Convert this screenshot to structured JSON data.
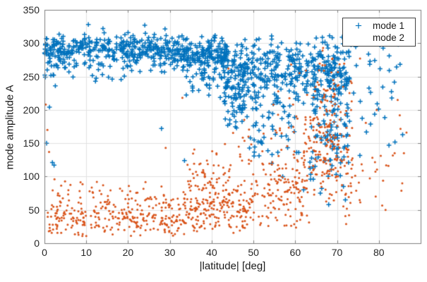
{
  "chart_data": {
    "type": "scatter",
    "title": "",
    "xlabel": "|latitude| [deg]",
    "ylabel": "mode amplitude A",
    "xlim": [
      0,
      90
    ],
    "ylim": [
      0,
      350
    ],
    "xticks": [
      0,
      10,
      20,
      30,
      40,
      50,
      60,
      70,
      80
    ],
    "yticks": [
      0,
      50,
      100,
      150,
      200,
      250,
      300,
      350
    ],
    "grid": true,
    "background_color": "#ffffff",
    "axis_box_color": "#7f7f7f",
    "grid_color": "#e2e2e2",
    "tick_text_color": "#262626",
    "label_text_color": "#1a1a1a",
    "seed": 1234,
    "legend": {
      "position": "northeast",
      "border_color": "#404040",
      "entries": [
        "mode 1",
        "mode 2"
      ]
    },
    "series": [
      {
        "name": "mode 1",
        "marker": "plus",
        "marker_glyph": "+",
        "color": "#0072BD",
        "marker_size": 6.6,
        "clusters": [
          {
            "n": 320,
            "x": [
              0,
              30
            ],
            "y": {
              "mean": 291,
              "sd": 11,
              "clip": [
                245,
                328
              ]
            }
          },
          {
            "n": 55,
            "x": [
              0,
              30
            ],
            "y": {
              "mean": 266,
              "sd": 10,
              "clip": [
                235,
                290
              ]
            }
          },
          {
            "n": 180,
            "x": [
              30,
              44
            ],
            "y": {
              "mean": 285,
              "sd": 13,
              "clip": [
                240,
                325
              ]
            }
          },
          {
            "n": 90,
            "x": [
              33,
              47
            ],
            "y": {
              "mean": 255,
              "sd": 20,
              "clip": [
                195,
                300
              ]
            }
          },
          {
            "n": 90,
            "x": [
              43,
              48
            ],
            "y": {
              "mean": 232,
              "sd": 33,
              "clip": [
                165,
                305
              ]
            }
          },
          {
            "n": 110,
            "x": [
              47,
              56
            ],
            "y": {
              "mean": 262,
              "sd": 26,
              "clip": [
                175,
                315
              ]
            }
          },
          {
            "n": 55,
            "x": [
              48,
              61
            ],
            "y": {
              "mean": 180,
              "sd": 30,
              "clip": [
                110,
                240
              ]
            }
          },
          {
            "n": 60,
            "x": [
              55,
              61
            ],
            "y": {
              "mean": 258,
              "sd": 26,
              "clip": [
                180,
                312
              ]
            }
          },
          {
            "n": 150,
            "x": [
              60,
              73
            ],
            "y": {
              "mean": 262,
              "sd": 24,
              "clip": [
                198,
                315
              ]
            }
          },
          {
            "n": 140,
            "x": [
              63,
              73
            ],
            "y": {
              "mean": 190,
              "sd": 55,
              "clip": [
                75,
                300
              ]
            }
          },
          {
            "n": 35,
            "x": [
              73,
              86
            ],
            "y": {
              "mean": 235,
              "sd": 50,
              "clip": [
                105,
                308
              ]
            }
          }
        ],
        "points": [
          [
            0.5,
            150
          ],
          [
            1.2,
            204
          ],
          [
            1.9,
            121
          ],
          [
            2.3,
            117
          ],
          [
            2.6,
            236
          ],
          [
            10.5,
            328
          ],
          [
            14,
            322
          ],
          [
            20,
            316
          ],
          [
            24,
            327
          ],
          [
            28,
            172
          ],
          [
            33.5,
            124
          ],
          [
            57,
            100
          ],
          [
            62,
            80
          ],
          [
            66,
            75
          ],
          [
            68,
            58
          ],
          [
            72,
            65
          ]
        ]
      },
      {
        "name": "mode 2",
        "marker": "dot",
        "marker_glyph": "•",
        "color": "#D95319",
        "marker_size": 3,
        "clusters": [
          {
            "n": 270,
            "x": [
              0,
              32
            ],
            "y": {
              "mean": 38,
              "sd": 16,
              "clip": [
                10,
                95
              ]
            }
          },
          {
            "n": 40,
            "x": [
              3,
              30
            ],
            "y": {
              "mean": 76,
              "sd": 10,
              "clip": [
                58,
                97
              ]
            }
          },
          {
            "n": 200,
            "x": [
              32,
              50
            ],
            "y": {
              "mean": 52,
              "sd": 20,
              "clip": [
                12,
                110
              ]
            }
          },
          {
            "n": 70,
            "x": [
              34,
              46
            ],
            "y": {
              "mean": 95,
              "sd": 25,
              "clip": [
                60,
                155
              ]
            }
          },
          {
            "n": 110,
            "x": [
              50,
              62
            ],
            "y": {
              "mean": 70,
              "sd": 30,
              "clip": [
                15,
                160
              ]
            }
          },
          {
            "n": 20,
            "x": [
              44,
              56
            ],
            "y": {
              "mean": 140,
              "sd": 35,
              "clip": [
                90,
                240
              ]
            }
          },
          {
            "n": 55,
            "x": [
              55,
              66
            ],
            "y": {
              "mean": 130,
              "sd": 40,
              "clip": [
                60,
                250
              ]
            }
          },
          {
            "n": 180,
            "x": [
              62,
              74
            ],
            "y": {
              "mean": 140,
              "sd": 55,
              "clip": [
                25,
                285
              ]
            }
          },
          {
            "n": 55,
            "x": [
              66.5,
              70.5
            ],
            "y": {
              "mean": 200,
              "sd": 55,
              "clip": [
                80,
                305
              ]
            }
          },
          {
            "n": 25,
            "x": [
              74,
              87
            ],
            "y": {
              "mean": 115,
              "sd": 45,
              "clip": [
                45,
                205
              ]
            }
          }
        ],
        "points": [
          [
            0.3,
            208
          ],
          [
            0.7,
            170
          ],
          [
            1.1,
            137
          ],
          [
            2.4,
            96
          ],
          [
            29,
            143
          ],
          [
            33,
            218
          ],
          [
            44,
            262
          ],
          [
            59,
            268
          ],
          [
            61,
            255
          ],
          [
            75.5,
            277
          ],
          [
            84.5,
            215
          ],
          [
            85,
            192
          ],
          [
            85.6,
            90
          ],
          [
            81.6,
            50
          ],
          [
            86,
            135
          ]
        ]
      }
    ]
  }
}
